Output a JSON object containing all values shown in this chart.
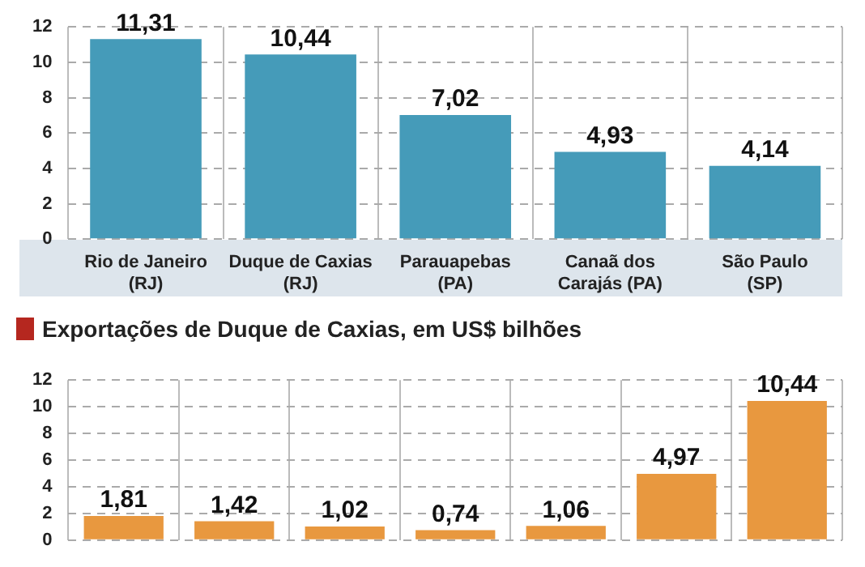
{
  "chart_data": [
    {
      "type": "bar",
      "categories": [
        "Rio de Janeiro\n(RJ)",
        "Duque de Caxias\n(RJ)",
        "Parauapebas\n(PA)",
        "Canaã dos\nCarajás (PA)",
        "São Paulo\n(SP)"
      ],
      "values": [
        11.31,
        10.44,
        7.02,
        4.93,
        4.14
      ],
      "value_labels": [
        "11,31",
        "10,44",
        "7,02",
        "4,93",
        "4,14"
      ],
      "color": "#459bb9",
      "ylim": [
        0,
        12
      ],
      "yticks": [
        0,
        2,
        4,
        6,
        8,
        10,
        12
      ],
      "grid": true,
      "legend": false
    },
    {
      "type": "bar",
      "title": "Exportações de Duque de Caxias, em US$ bilhões",
      "categories": [
        null,
        null,
        null,
        null,
        null,
        null,
        null
      ],
      "values": [
        1.81,
        1.42,
        1.02,
        0.74,
        1.06,
        4.97,
        10.44
      ],
      "value_labels": [
        "1,81",
        "1,42",
        "1,02",
        "0,74",
        "1,06",
        "4,97",
        "10,44"
      ],
      "color": "#e8983f",
      "ylim": [
        0,
        12
      ],
      "yticks": [
        0,
        2,
        4,
        6,
        8,
        10,
        12
      ],
      "grid": true,
      "legend": false,
      "tick_labels": "y"
    }
  ]
}
